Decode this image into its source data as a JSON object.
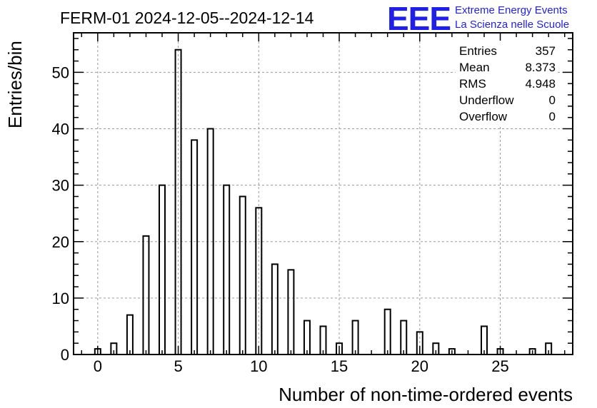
{
  "title": "FERM-01 2024-12-05--2024-12-14",
  "logo": {
    "mark": "EEE",
    "line1": "Extreme Energy Events",
    "line2": "La Scienza nelle Scuole",
    "color": "#1f1fe6"
  },
  "stats": [
    {
      "label": "Entries",
      "value": "357"
    },
    {
      "label": "Mean",
      "value": "8.373"
    },
    {
      "label": "RMS",
      "value": "4.948"
    },
    {
      "label": "Underflow",
      "value": "0"
    },
    {
      "label": "Overflow",
      "value": "0"
    }
  ],
  "chart_data": {
    "type": "bar",
    "xlabel": "Number of non-time-ordered events",
    "ylabel": "Entries/bin",
    "xlim": [
      -1.5,
      29.5
    ],
    "ylim": [
      0,
      57
    ],
    "xticks": [
      "0",
      "5",
      "10",
      "15",
      "20",
      "25"
    ],
    "yticks": [
      "0",
      "10",
      "20",
      "30",
      "40",
      "50"
    ],
    "grid": true,
    "x": [
      0,
      1,
      2,
      3,
      4,
      5,
      6,
      7,
      8,
      9,
      10,
      11,
      12,
      13,
      14,
      15,
      16,
      17,
      18,
      19,
      20,
      21,
      22,
      23,
      24,
      25,
      26,
      27,
      28
    ],
    "values": [
      1,
      2,
      7,
      21,
      30,
      54,
      38,
      40,
      30,
      28,
      26,
      16,
      15,
      6,
      5,
      2,
      6,
      0,
      8,
      6,
      4,
      2,
      1,
      0,
      5,
      1,
      0,
      1,
      2
    ]
  }
}
